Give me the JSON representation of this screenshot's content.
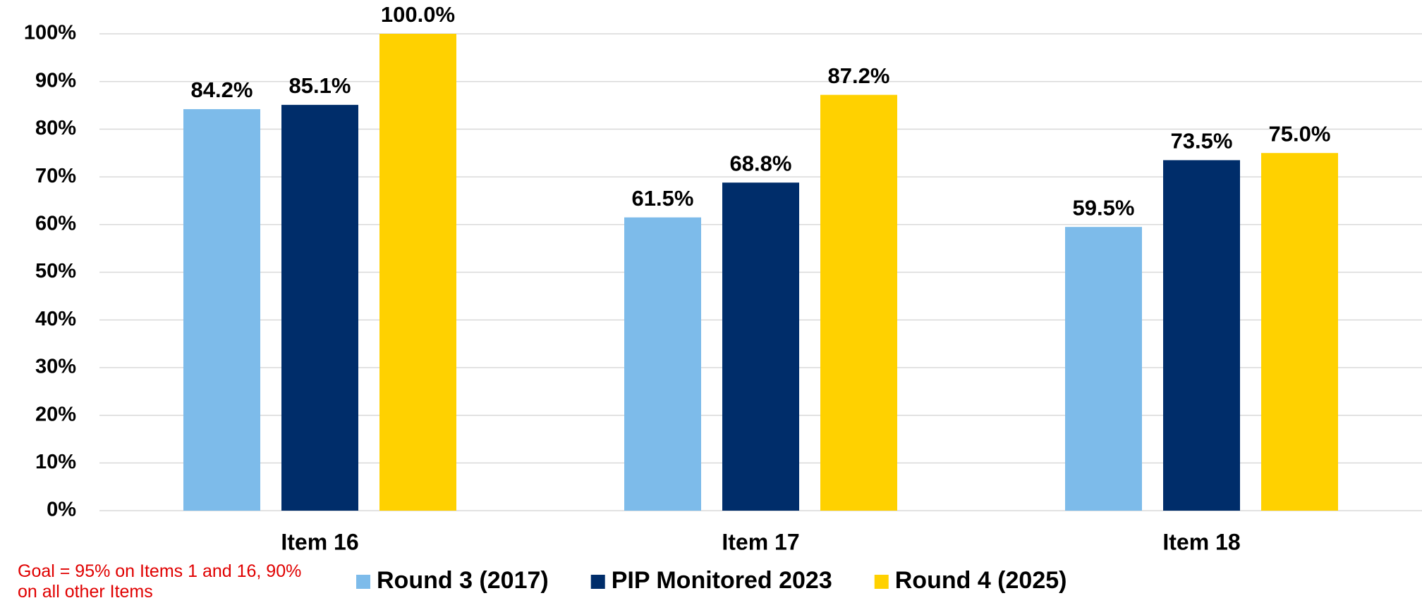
{
  "chart_data": {
    "type": "bar",
    "categories": [
      "Item 16",
      "Item 17",
      "Item 18"
    ],
    "series": [
      {
        "name": "Round 3 (2017)",
        "color": "#7dbbea",
        "values": [
          84.2,
          61.5,
          59.5
        ],
        "value_labels": [
          "84.2%",
          "61.5%",
          "59.5%"
        ]
      },
      {
        "name": "PIP Monitored 2023",
        "color": "#002d6a",
        "values": [
          85.1,
          68.8,
          73.5
        ],
        "value_labels": [
          "85.1%",
          "68.8%",
          "73.5%"
        ]
      },
      {
        "name": "Round 4 (2025)",
        "color": "#ffd100",
        "values": [
          100.0,
          87.2,
          75.0
        ],
        "value_labels": [
          "100.0%",
          "87.2%",
          "75.0%"
        ]
      }
    ],
    "ylim": [
      0,
      100
    ],
    "yticks": [
      {
        "value": 0,
        "label": "0%"
      },
      {
        "value": 10,
        "label": "10%"
      },
      {
        "value": 20,
        "label": "20%"
      },
      {
        "value": 30,
        "label": "30%"
      },
      {
        "value": 40,
        "label": "40%"
      },
      {
        "value": 50,
        "label": "50%"
      },
      {
        "value": 60,
        "label": "60%"
      },
      {
        "value": 70,
        "label": "70%"
      },
      {
        "value": 80,
        "label": "80%"
      },
      {
        "value": 90,
        "label": "90%"
      },
      {
        "value": 100,
        "label": "100%"
      }
    ],
    "grid": true,
    "legend": "bottom",
    "annotation": "Goal = 95% on Items 1 and 16, 90% on all other Items"
  }
}
